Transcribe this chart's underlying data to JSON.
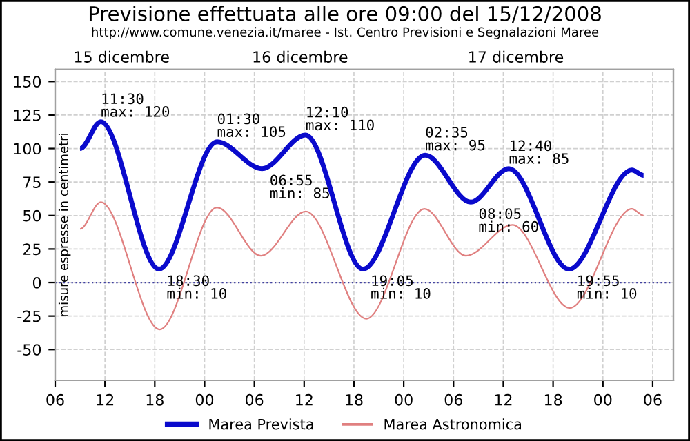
{
  "chart_data": {
    "type": "line",
    "title": "Previsione effettuata alle ore 09:00 del 15/12/2008",
    "subtitle": "http://www.comune.venezia.it/maree - Ist. Centro Previsioni e Segnalazioni Maree",
    "ylabel": "misure espresse in centimetri",
    "series": [
      {
        "name": "Marea Prevista",
        "color": "#0a0acc",
        "x": [
          9,
          11.5,
          18.5,
          25.5,
          30.92,
          36.17,
          43.08,
          50.58,
          56.08,
          60.67,
          67.92,
          75.5,
          76.9
        ],
        "values": [
          100,
          120,
          10,
          105,
          85,
          110,
          10,
          95,
          60,
          85,
          10,
          84,
          80
        ]
      },
      {
        "name": "Marea Astronomica",
        "color": "#e08080",
        "x": [
          9,
          11.5,
          18.6,
          25.5,
          30.8,
          36.2,
          43.5,
          50.5,
          55.5,
          61.1,
          68,
          75.5,
          76.9
        ],
        "values": [
          40,
          60,
          -35,
          56,
          20,
          53,
          -27,
          55,
          20,
          43,
          -19,
          55,
          50
        ]
      }
    ],
    "annotations": [
      {
        "text": "11:30\nmax: 120",
        "x": 11.5,
        "y": 120
      },
      {
        "text": "18:30\nmin: 10",
        "x": 18.5,
        "y": 10
      },
      {
        "text": "01:30\nmax: 105",
        "x": 25.5,
        "y": 105
      },
      {
        "text": "06:55\nmin: 85",
        "x": 30.92,
        "y": 85
      },
      {
        "text": "12:10\nmax: 110",
        "x": 36.17,
        "y": 110
      },
      {
        "text": "19:05\nmin: 10",
        "x": 43.08,
        "y": 10
      },
      {
        "text": "02:35\nmax: 95",
        "x": 50.58,
        "y": 95
      },
      {
        "text": "08:05\nmin: 60",
        "x": 56.08,
        "y": 60
      },
      {
        "text": "12:40\nmax: 85",
        "x": 60.67,
        "y": 85
      },
      {
        "text": "19:55\nmin: 10",
        "x": 67.92,
        "y": 10
      }
    ],
    "xlim": [
      6,
      80.5
    ],
    "xticks": [
      {
        "value": 6,
        "label": "06"
      },
      {
        "value": 12,
        "label": "12"
      },
      {
        "value": 18,
        "label": "18"
      },
      {
        "value": 24,
        "label": "00"
      },
      {
        "value": 30,
        "label": "06"
      },
      {
        "value": 36,
        "label": "12"
      },
      {
        "value": 42,
        "label": "18"
      },
      {
        "value": 48,
        "label": "00"
      },
      {
        "value": 54,
        "label": "06"
      },
      {
        "value": 60,
        "label": "12"
      },
      {
        "value": 66,
        "label": "18"
      },
      {
        "value": 72,
        "label": "00"
      },
      {
        "value": 78,
        "label": "06"
      }
    ],
    "x2lim": [
      "2008-12-15T06:00",
      "2008-12-18T08:30"
    ],
    "x2ticks": [
      {
        "value": "2008-12-15T14:00",
        "label": "15 dicembre"
      },
      {
        "value": "2008-12-16T11:30",
        "label": "16 dicembre"
      },
      {
        "value": "2008-12-17T13:30",
        "label": "17 dicembre"
      }
    ],
    "ylim": [
      -73,
      159
    ],
    "yticks": [
      -50,
      -25,
      0,
      25,
      50,
      75,
      100,
      125,
      150
    ],
    "ref_lines": [
      {
        "axis": "y",
        "value": 0,
        "color": "#4040a0",
        "line_style": "dotted"
      }
    ],
    "grid": true,
    "legend": "bottom",
    "line_style": "solid",
    "marker": "none"
  }
}
